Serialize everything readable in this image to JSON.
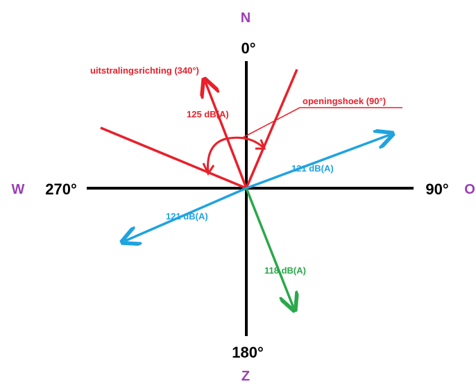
{
  "compass": {
    "north": "N",
    "east": "O",
    "south": "Z",
    "west": "W"
  },
  "degrees": {
    "north": "0°",
    "east": "90°",
    "south": "180°",
    "west": "270°"
  },
  "labels": {
    "direction": "uitstralingsrichting (340°)",
    "opening": "openingshoek (90°)",
    "sound_main": "125 dB(A)",
    "sound_blue_ne": "121 dB(A)",
    "sound_blue_sw": "121 dB(A)",
    "sound_green": "118 dB(A)"
  },
  "colors": {
    "axes": "#000000",
    "compass_letters": "#9b3fb5",
    "red": "#e8202a",
    "blue": "#1fa3e0",
    "green": "#2aa84a"
  },
  "angles": {
    "radiation_direction": 340,
    "opening_angle": 90
  }
}
